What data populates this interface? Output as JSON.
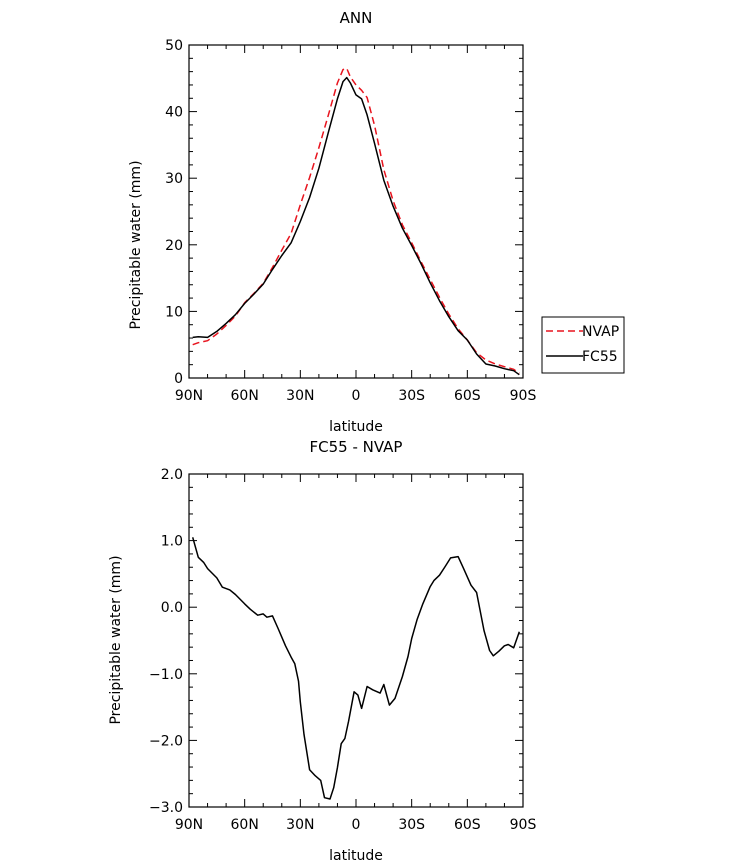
{
  "chart_data": [
    {
      "type": "line",
      "title": "ANN",
      "xlabel": "latitude",
      "ylabel": "Precipitable water  (mm)",
      "x_range": [
        90,
        -90
      ],
      "x_ticks": [
        90,
        60,
        30,
        0,
        -30,
        -60,
        -90
      ],
      "x_tick_labels": [
        "90N",
        "60N",
        "30N",
        "0",
        "30S",
        "60S",
        "90S"
      ],
      "ylim": [
        0,
        50
      ],
      "y_ticks": [
        0,
        10,
        20,
        30,
        40,
        50
      ],
      "y_tick_labels": [
        "0",
        "10",
        "20",
        "30",
        "40",
        "50"
      ],
      "legend_position": "right",
      "series": [
        {
          "name": "NVAP",
          "color": "#e8141e",
          "dash": "dashed",
          "x": [
            88,
            85,
            80,
            75,
            70,
            65,
            60,
            55,
            50,
            45,
            40,
            35,
            30,
            25,
            20,
            15,
            10,
            7,
            5,
            3,
            0,
            -3,
            -6,
            -10,
            -15,
            -20,
            -25,
            -30,
            -35,
            -40,
            -45,
            -50,
            -55,
            -60,
            -65,
            -70,
            -75,
            -80,
            -85,
            -88
          ],
          "y": [
            5.0,
            5.3,
            5.6,
            6.6,
            7.9,
            9.3,
            11.3,
            12.7,
            14.2,
            16.6,
            19.2,
            21.7,
            26.0,
            30.1,
            34.6,
            39.4,
            44.3,
            46.3,
            46.5,
            45.2,
            44.0,
            43.2,
            42.1,
            37.9,
            31.3,
            26.6,
            23.0,
            20.3,
            17.5,
            14.8,
            12.1,
            9.6,
            7.4,
            5.7,
            3.8,
            2.7,
            2.1,
            1.7,
            1.3,
            0.7
          ]
        },
        {
          "name": "FC55",
          "color": "#000000",
          "dash": "solid",
          "x": [
            88,
            85,
            80,
            75,
            70,
            65,
            60,
            55,
            50,
            45,
            40,
            35,
            30,
            25,
            20,
            15,
            10,
            7,
            5,
            3,
            0,
            -3,
            -6,
            -10,
            -15,
            -20,
            -25,
            -30,
            -35,
            -40,
            -45,
            -50,
            -55,
            -60,
            -65,
            -70,
            -75,
            -80,
            -85,
            -88
          ],
          "y": [
            6.1,
            6.2,
            6.1,
            7.0,
            8.2,
            9.5,
            11.2,
            12.6,
            14.1,
            16.3,
            18.4,
            20.3,
            23.5,
            27.1,
            31.5,
            36.8,
            41.9,
            44.5,
            45.1,
            44.3,
            42.5,
            41.9,
            39.5,
            35.2,
            29.7,
            25.8,
            22.5,
            19.9,
            17.2,
            14.3,
            11.6,
            9.2,
            7.1,
            5.7,
            3.6,
            2.1,
            1.8,
            1.4,
            1.1,
            0.5
          ]
        }
      ]
    },
    {
      "type": "line",
      "title": "FC55  -  NVAP",
      "xlabel": "latitude",
      "ylabel": "Precipitable water  (mm)",
      "x_range": [
        90,
        -90
      ],
      "x_ticks": [
        90,
        60,
        30,
        0,
        -30,
        -60,
        -90
      ],
      "x_tick_labels": [
        "90N",
        "60N",
        "30N",
        "0",
        "30S",
        "60S",
        "90S"
      ],
      "ylim": [
        -3.0,
        2.0
      ],
      "y_ticks": [
        -3,
        -2,
        -1,
        0,
        1,
        2
      ],
      "y_tick_labels": [
        "−3.0",
        "−2.0",
        "−1.0",
        "0.0",
        "1.0",
        "2.0"
      ],
      "series": [
        {
          "color": "#000000",
          "dash": "solid",
          "x": [
            88,
            85,
            82,
            80,
            75,
            72,
            68,
            65,
            60,
            57,
            53,
            50,
            48,
            45,
            42,
            38,
            35,
            33,
            31,
            30,
            28,
            25,
            22,
            19,
            17,
            14,
            12,
            10,
            8,
            6,
            4,
            1,
            -1,
            -3,
            -6,
            -9,
            -13,
            -15,
            -18,
            -21,
            -25,
            -28,
            -30,
            -33,
            -36,
            -40,
            -42,
            -45,
            -48,
            -51,
            -55,
            -58,
            -62,
            -65,
            -69,
            -72,
            -74,
            -77,
            -80,
            -82,
            -85,
            -88
          ],
          "y": [
            1.05,
            0.75,
            0.67,
            0.58,
            0.44,
            0.3,
            0.26,
            0.19,
            0.05,
            -0.03,
            -0.12,
            -0.1,
            -0.15,
            -0.13,
            -0.32,
            -0.58,
            -0.75,
            -0.85,
            -1.11,
            -1.42,
            -1.91,
            -2.44,
            -2.53,
            -2.6,
            -2.86,
            -2.88,
            -2.71,
            -2.41,
            -2.05,
            -1.97,
            -1.71,
            -1.27,
            -1.32,
            -1.52,
            -1.19,
            -1.24,
            -1.29,
            -1.16,
            -1.47,
            -1.37,
            -1.04,
            -0.74,
            -0.47,
            -0.18,
            0.05,
            0.31,
            0.4,
            0.48,
            0.61,
            0.74,
            0.76,
            0.58,
            0.33,
            0.22,
            -0.35,
            -0.65,
            -0.73,
            -0.66,
            -0.58,
            -0.56,
            -0.61,
            -0.37
          ]
        }
      ]
    }
  ]
}
